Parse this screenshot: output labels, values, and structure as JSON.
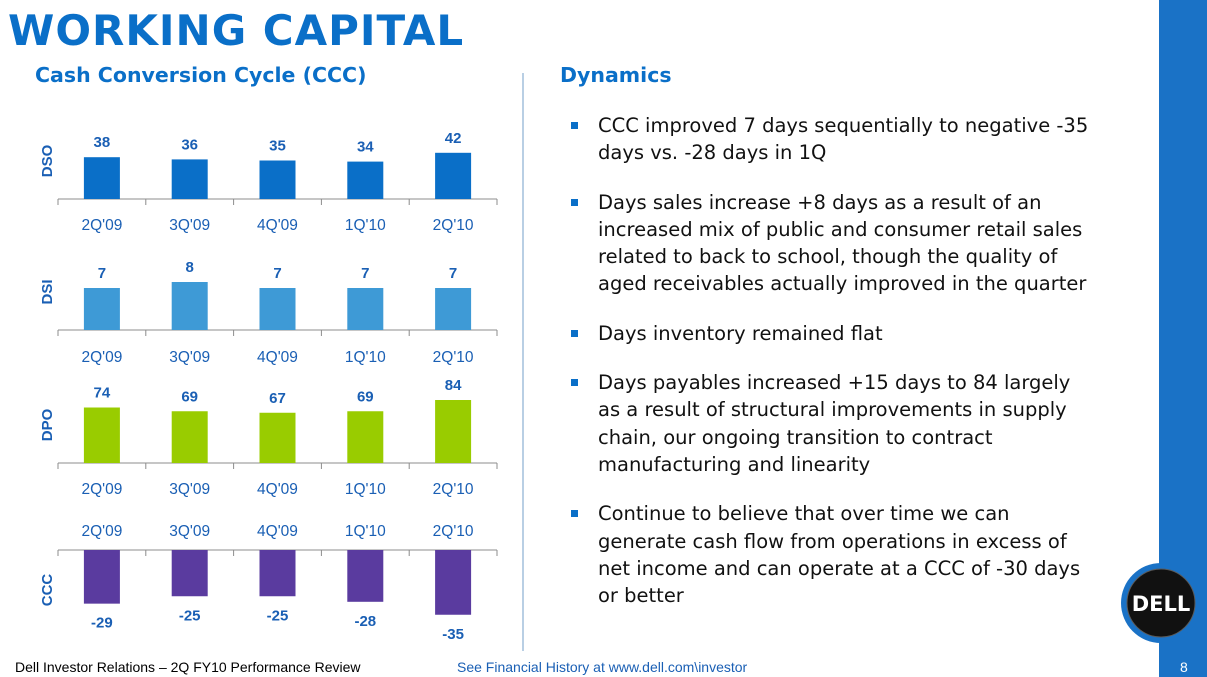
{
  "header": {
    "title": "WORKING CAPITAL"
  },
  "left": {
    "subtitle": "Cash Conversion Cycle (CCC)"
  },
  "right": {
    "title": "Dynamics",
    "bullets": [
      "CCC improved 7 days sequentially to negative -35 days vs. -28 days in 1Q",
      "Days sales increase +8 days as a result of an increased mix of public and consumer retail sales related to back to school, though the quality of aged receivables actually improved in the quarter",
      "Days inventory remained flat",
      "Days payables increased +15 days to 84 largely as a result of structural improvements in supply chain, our ongoing transition to contract manufacturing and linearity",
      "Continue to believe that over time we can generate cash flow from operations in excess of net income and can operate at a CCC of -30 days or better"
    ]
  },
  "footer": {
    "left": "Dell Investor Relations – 2Q FY10 Performance Review",
    "middle": "See Financial History at www.dell.com\\investor",
    "page": "8"
  },
  "logo": {
    "text": "DELL"
  },
  "colors": {
    "accent": "#0a6fc8",
    "dso": "#0a6fc8",
    "dsi": "#3e9ad6",
    "dpo": "#99cc00",
    "ccc": "#5a3b9f",
    "side_bar": "#1a72c6"
  },
  "chart_data": [
    {
      "type": "bar",
      "ylabel": "DSO",
      "categories": [
        "2Q'09",
        "3Q'09",
        "4Q'09",
        "1Q'10",
        "2Q'10"
      ],
      "values": [
        38,
        36,
        35,
        34,
        42
      ]
    },
    {
      "type": "bar",
      "ylabel": "DSI",
      "categories": [
        "2Q'09",
        "3Q'09",
        "4Q'09",
        "1Q'10",
        "2Q'10"
      ],
      "values": [
        7,
        8,
        7,
        7,
        7
      ]
    },
    {
      "type": "bar",
      "ylabel": "DPO",
      "categories": [
        "2Q'09",
        "3Q'09",
        "4Q'09",
        "1Q'10",
        "2Q'10"
      ],
      "values": [
        74,
        69,
        67,
        69,
        84
      ]
    },
    {
      "type": "bar",
      "ylabel": "CCC",
      "categories": [
        "2Q'09",
        "3Q'09",
        "4Q'09",
        "1Q'10",
        "2Q'10"
      ],
      "values": [
        -29,
        -25,
        -25,
        -28,
        -35
      ]
    }
  ]
}
